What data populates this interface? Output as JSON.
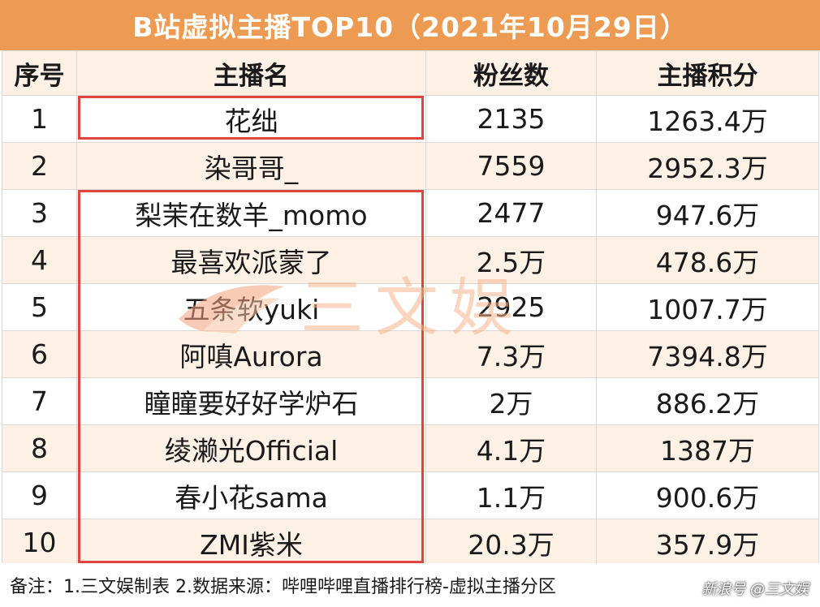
{
  "title": "B站虚拟主播TOP10（2021年10月29日）",
  "columns": [
    "序号",
    "主播名",
    "粉丝数",
    "主播积分"
  ],
  "rows": [
    {
      "rank": "1",
      "name": "花绌",
      "fans": "2135",
      "score": "1263.4万"
    },
    {
      "rank": "2",
      "name": "染哥哥_",
      "fans": "7559",
      "score": "2952.3万"
    },
    {
      "rank": "3",
      "name": "梨茉在数羊_momo",
      "fans": "2477",
      "score": "947.6万"
    },
    {
      "rank": "4",
      "name": "最喜欢派蒙了",
      "fans": "2.5万",
      "score": "478.6万"
    },
    {
      "rank": "5",
      "name": "五条软yuki",
      "fans": "2925",
      "score": "1007.7万"
    },
    {
      "rank": "6",
      "name": "阿嗔Aurora",
      "fans": "7.3万",
      "score": "7394.8万"
    },
    {
      "rank": "7",
      "name": "瞳瞳要好好学炉石",
      "fans": "2万",
      "score": "886.2万"
    },
    {
      "rank": "8",
      "name": "绫濑光Official",
      "fans": "4.1万",
      "score": "1387万"
    },
    {
      "rank": "9",
      "name": "春小花sama",
      "fans": "1.1万",
      "score": "900.6万"
    },
    {
      "rank": "10",
      "name": "ZMI紫米",
      "fans": "20.3万",
      "score": "357.9万"
    }
  ],
  "note": "备注：1.三文娱制表 2.数据来源：哔哩哔哩直播排行榜-虚拟主播分区",
  "watermark_text": "三文娱",
  "corner_mark": "新浪号 @三文娱",
  "colors": {
    "header": "#ed9a52",
    "stripe": "#fdf1e6",
    "highlight": "#e0443e"
  }
}
